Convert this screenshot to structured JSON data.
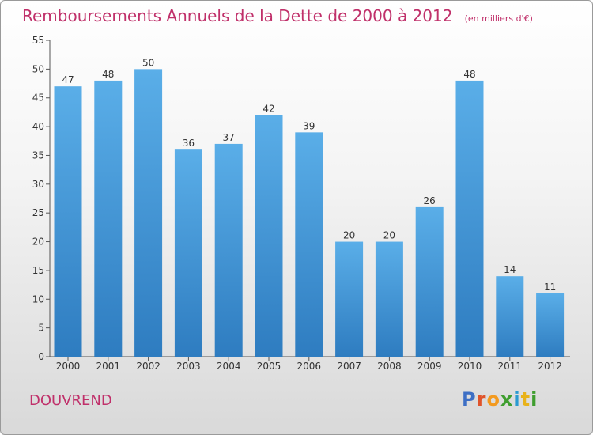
{
  "title": "Remboursements Annuels de la Dette de 2000 à 2012",
  "subtitle": "(en milliers d'€)",
  "place": "DOUVREND",
  "logo": [
    "P",
    "r",
    "o",
    "x",
    "i",
    "t",
    "i"
  ],
  "colors": {
    "title": "#c0306a",
    "bar_top": "#5aaee8",
    "bar_bottom": "#2e7cc0",
    "logo": [
      "#3d6fc5",
      "#e0542b",
      "#f39a1f",
      "#3f9e2f",
      "#2b9ad1",
      "#e8b21a",
      "#3f9e2f"
    ]
  },
  "chart_data": {
    "type": "bar",
    "title": "Remboursements Annuels de la Dette de 2000 à 2012",
    "subtitle": "(en milliers d'€)",
    "categories": [
      "2000",
      "2001",
      "2002",
      "2003",
      "2004",
      "2005",
      "2006",
      "2007",
      "2008",
      "2009",
      "2010",
      "2011",
      "2012"
    ],
    "values": [
      47,
      48,
      50,
      36,
      37,
      42,
      39,
      20,
      20,
      26,
      48,
      14,
      11
    ],
    "data_labels": [
      "47",
      "48",
      "50",
      "36",
      "37",
      "42",
      "39",
      "20",
      "20",
      "26",
      "48",
      "14",
      "11"
    ],
    "ylim": [
      0,
      55
    ],
    "yticks": [
      0,
      5,
      10,
      15,
      20,
      25,
      30,
      35,
      40,
      45,
      50,
      55
    ],
    "ytick_labels": [
      "0",
      "5",
      "10",
      "15",
      "20",
      "25",
      "30",
      "35",
      "40",
      "45",
      "50",
      "55"
    ],
    "grid": false,
    "legend": "none"
  }
}
